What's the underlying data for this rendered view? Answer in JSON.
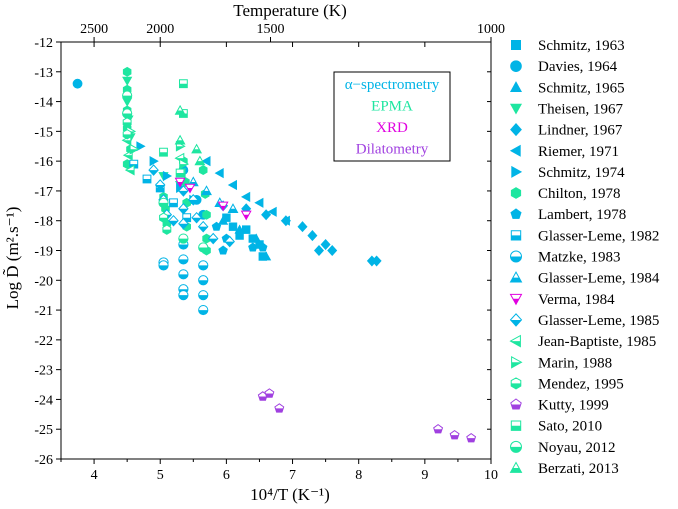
{
  "chart_data": {
    "type": "scatter",
    "title": "",
    "xlabel": "10⁴/T (K⁻¹)",
    "ylabel": "Log D̃ (m².s⁻¹)",
    "top_xlabel": "Temperature (K)",
    "xlim": [
      3.5,
      10
    ],
    "ylim": [
      -26,
      -12
    ],
    "x_ticks": [
      4,
      5,
      6,
      7,
      8,
      9,
      10
    ],
    "y_ticks": [
      -12,
      -13,
      -14,
      -15,
      -16,
      -17,
      -18,
      -19,
      -20,
      -21,
      -22,
      -23,
      -24,
      -25,
      -26
    ],
    "top_ticks": [
      {
        "label": "2500",
        "value": 2500
      },
      {
        "label": "2000",
        "value": 2000
      },
      {
        "label": "1500",
        "value": 1500
      },
      {
        "label": "1000",
        "value": 1000
      }
    ],
    "technique_legend": [
      {
        "label": "α−spectrometry",
        "color": "#00b4e6"
      },
      {
        "label": "EPMA",
        "color": "#1ee6a0"
      },
      {
        "label": "XRD",
        "color": "#e000e0"
      },
      {
        "label": "Dilatometry",
        "color": "#a040e0"
      }
    ],
    "series": [
      {
        "name": "Schmitz, 1963",
        "marker": "square",
        "fill": "full",
        "color": "#00b4e6",
        "points": [
          [
            6.0,
            -17.9
          ],
          [
            6.1,
            -18.2
          ],
          [
            6.2,
            -18.5
          ],
          [
            6.3,
            -18.3
          ],
          [
            6.4,
            -18.6
          ],
          [
            6.5,
            -18.8
          ],
          [
            6.55,
            -19.2
          ]
        ]
      },
      {
        "name": "Davies, 1964",
        "marker": "circle",
        "fill": "full",
        "color": "#00b4e6",
        "points": [
          [
            3.75,
            -13.4
          ],
          [
            5.35,
            -16.3
          ],
          [
            5.55,
            -17.3
          ],
          [
            5.65,
            -17.8
          ]
        ]
      },
      {
        "name": "Schmitz, 1965",
        "marker": "triangle-up",
        "fill": "full",
        "color": "#00b4e6",
        "points": [
          [
            5.95,
            -18.0
          ],
          [
            6.2,
            -18.3
          ],
          [
            6.45,
            -18.6
          ],
          [
            6.6,
            -19.2
          ]
        ]
      },
      {
        "name": "Theisen, 1967",
        "marker": "triangle-down",
        "fill": "full",
        "color": "#1ee6a0",
        "points": [
          [
            4.5,
            -13.3
          ],
          [
            4.5,
            -14.0
          ],
          [
            4.52,
            -14.6
          ],
          [
            4.55,
            -15.2
          ],
          [
            5.05,
            -16.5
          ],
          [
            5.3,
            -16.8
          ]
        ]
      },
      {
        "name": "Lindner, 1967",
        "marker": "diamond",
        "fill": "full",
        "color": "#00b4e6",
        "points": [
          [
            5.95,
            -17.5
          ],
          [
            6.3,
            -17.6
          ],
          [
            6.6,
            -17.8
          ],
          [
            6.9,
            -18.0
          ],
          [
            7.15,
            -18.2
          ],
          [
            7.3,
            -18.5
          ],
          [
            7.5,
            -18.8
          ],
          [
            7.6,
            -19.0
          ],
          [
            7.4,
            -19.0
          ],
          [
            8.2,
            -19.35
          ],
          [
            8.27,
            -19.35
          ]
        ]
      },
      {
        "name": "Riemer, 1971",
        "marker": "triangle-left",
        "fill": "full",
        "color": "#00b4e6",
        "points": [
          [
            5.7,
            -16.0
          ],
          [
            5.9,
            -16.4
          ],
          [
            6.1,
            -16.8
          ],
          [
            6.3,
            -17.2
          ],
          [
            6.5,
            -17.4
          ],
          [
            6.7,
            -17.7
          ],
          [
            6.9,
            -18.0
          ]
        ]
      },
      {
        "name": "Schmitz, 1974",
        "marker": "triangle-right",
        "fill": "full",
        "color": "#00b4e6",
        "points": [
          [
            4.7,
            -15.5
          ],
          [
            4.9,
            -16.0
          ],
          [
            5.1,
            -16.5
          ],
          [
            5.3,
            -16.9
          ],
          [
            5.5,
            -17.3
          ]
        ]
      },
      {
        "name": "Chilton, 1978",
        "marker": "hexagon",
        "fill": "full",
        "color": "#1ee6a0",
        "points": [
          [
            4.5,
            -13.0
          ],
          [
            4.5,
            -13.6
          ],
          [
            4.5,
            -14.3
          ],
          [
            4.5,
            -14.9
          ],
          [
            4.55,
            -15.6
          ],
          [
            4.5,
            -16.1
          ],
          [
            5.05,
            -17.2
          ],
          [
            5.08,
            -17.6
          ],
          [
            5.1,
            -18.1
          ],
          [
            5.35,
            -16.0
          ],
          [
            5.38,
            -16.7
          ],
          [
            5.4,
            -17.4
          ],
          [
            5.4,
            -18.2
          ],
          [
            5.65,
            -16.3
          ],
          [
            5.68,
            -17.1
          ],
          [
            5.7,
            -17.8
          ],
          [
            5.7,
            -18.6
          ],
          [
            5.7,
            -19.0
          ]
        ]
      },
      {
        "name": "Lambert, 1978",
        "marker": "pentagon",
        "fill": "full",
        "color": "#00b4e6",
        "points": [
          [
            5.85,
            -18.2
          ],
          [
            5.95,
            -19.0
          ],
          [
            6.0,
            -18.6
          ],
          [
            6.4,
            -18.9
          ],
          [
            6.55,
            -18.9
          ]
        ]
      },
      {
        "name": "Glasser-Leme, 1982",
        "marker": "square",
        "fill": "half",
        "color": "#00b4e6",
        "points": [
          [
            4.6,
            -16.1
          ],
          [
            4.8,
            -16.6
          ],
          [
            5.0,
            -16.9
          ],
          [
            5.2,
            -17.4
          ],
          [
            5.4,
            -17.9
          ]
        ]
      },
      {
        "name": "Matzke, 1983",
        "marker": "circle",
        "fill": "half",
        "color": "#00b4e6",
        "points": [
          [
            5.05,
            -19.4
          ],
          [
            5.05,
            -19.5
          ],
          [
            5.35,
            -18.8
          ],
          [
            5.35,
            -19.3
          ],
          [
            5.35,
            -19.8
          ],
          [
            5.35,
            -20.3
          ],
          [
            5.35,
            -20.5
          ],
          [
            5.65,
            -19.5
          ],
          [
            5.65,
            -20.0
          ],
          [
            5.65,
            -20.5
          ],
          [
            5.65,
            -21.0
          ]
        ]
      },
      {
        "name": "Glasser-Leme, 1984",
        "marker": "triangle-up",
        "fill": "half",
        "color": "#00b4e6",
        "points": [
          [
            5.5,
            -16.7
          ],
          [
            5.7,
            -17.0
          ],
          [
            5.9,
            -17.4
          ],
          [
            6.1,
            -17.6
          ]
        ]
      },
      {
        "name": "Verma, 1984",
        "marker": "triangle-down",
        "fill": "half",
        "color": "#e000e0",
        "points": [
          [
            5.3,
            -16.7
          ],
          [
            5.45,
            -16.9
          ],
          [
            5.95,
            -17.5
          ],
          [
            6.3,
            -17.8
          ]
        ]
      },
      {
        "name": "Glasser-Leme, 1985",
        "marker": "diamond",
        "fill": "half",
        "color": "#00b4e6",
        "points": [
          [
            4.9,
            -16.3
          ],
          [
            5.0,
            -16.8
          ],
          [
            5.05,
            -17.3
          ],
          [
            5.1,
            -17.8
          ],
          [
            5.2,
            -18.0
          ],
          [
            5.35,
            -17.0
          ],
          [
            5.35,
            -17.6
          ],
          [
            5.35,
            -18.1
          ],
          [
            5.5,
            -17.3
          ],
          [
            5.55,
            -17.9
          ],
          [
            5.65,
            -18.2
          ],
          [
            5.8,
            -18.6
          ],
          [
            6.05,
            -18.7
          ]
        ]
      },
      {
        "name": "Jean-Baptiste, 1985",
        "marker": "triangle-left",
        "fill": "half",
        "color": "#1ee6a0",
        "points": [
          [
            4.5,
            -15.3
          ],
          [
            4.52,
            -15.8
          ],
          [
            4.55,
            -16.3
          ],
          [
            5.3,
            -15.9
          ],
          [
            5.32,
            -16.4
          ]
        ]
      },
      {
        "name": "Marin, 1988",
        "marker": "triangle-right",
        "fill": "half",
        "color": "#1ee6a0",
        "points": [
          [
            4.55,
            -15.0
          ],
          [
            4.6,
            -15.6
          ],
          [
            5.3,
            -15.5
          ],
          [
            5.35,
            -16.1
          ]
        ]
      },
      {
        "name": "Mendez, 1995",
        "marker": "hexagon",
        "fill": "half",
        "color": "#1ee6a0",
        "points": [
          [
            4.5,
            -14.7
          ],
          [
            4.5,
            -15.1
          ],
          [
            5.05,
            -17.9
          ],
          [
            5.1,
            -18.3
          ]
        ]
      },
      {
        "name": "Kutty, 1999",
        "marker": "pentagon",
        "fill": "half",
        "color": "#a040e0",
        "points": [
          [
            6.55,
            -23.9
          ],
          [
            6.65,
            -23.8
          ],
          [
            6.8,
            -24.3
          ],
          [
            9.2,
            -25.0
          ],
          [
            9.45,
            -25.2
          ],
          [
            9.7,
            -25.3
          ]
        ]
      },
      {
        "name": "Sato, 2010",
        "marker": "square",
        "fill": "half",
        "color": "#1ee6a0",
        "points": [
          [
            5.35,
            -13.4
          ],
          [
            5.35,
            -14.4
          ],
          [
            5.05,
            -15.7
          ],
          [
            5.3,
            -16.4
          ]
        ]
      },
      {
        "name": "Noyau, 2012",
        "marker": "circle",
        "fill": "half",
        "color": "#1ee6a0",
        "points": [
          [
            4.5,
            -13.8
          ],
          [
            4.5,
            -14.4
          ],
          [
            5.05,
            -17.4
          ],
          [
            5.35,
            -18.6
          ],
          [
            5.65,
            -18.9
          ]
        ]
      },
      {
        "name": "Berzati, 2013",
        "marker": "triangle-up",
        "fill": "half",
        "color": "#1ee6a0",
        "points": [
          [
            5.3,
            -14.3
          ],
          [
            5.3,
            -15.3
          ],
          [
            5.55,
            -15.6
          ],
          [
            5.6,
            -16.0
          ]
        ]
      }
    ]
  }
}
